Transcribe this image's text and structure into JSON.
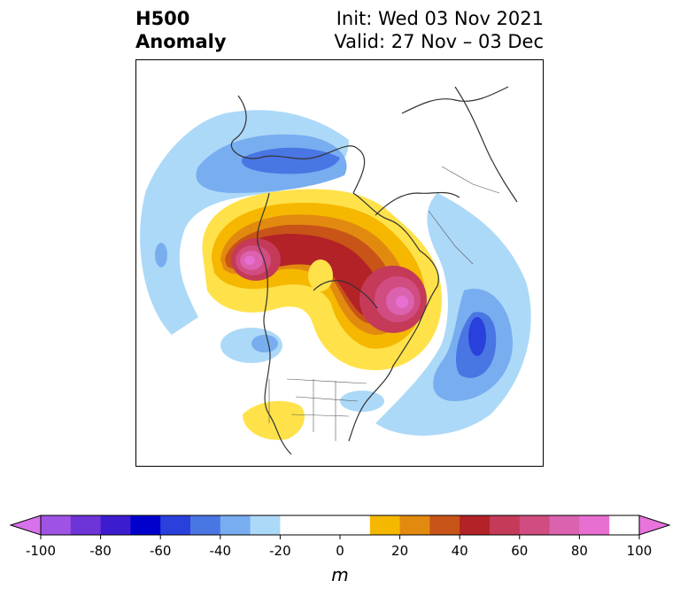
{
  "header": {
    "title_line1": "H500",
    "title_line2": "Anomaly",
    "init": "Init: Wed 03 Nov 2021",
    "valid": "Valid: 27 Nov – 03 Dec"
  },
  "colorbar": {
    "unit": "m",
    "ticks": [
      "-100",
      "-80",
      "-60",
      "-40",
      "-20",
      "0",
      "20",
      "40",
      "60",
      "80",
      "100"
    ],
    "levels": [
      -100,
      -90,
      -80,
      -70,
      -60,
      -50,
      -40,
      -30,
      -20,
      -10,
      10,
      20,
      30,
      40,
      50,
      60,
      70,
      80,
      90,
      100
    ],
    "colors": [
      "#9f53e4",
      "#6d34d8",
      "#3d1cd0",
      "#0000cd",
      "#2a40dc",
      "#4a76e4",
      "#78aef0",
      "#add9f8",
      "#ffffff",
      "#ffffff",
      "#ffe24a",
      "#f5b700",
      "#e28a10",
      "#c85418",
      "#b32226",
      "#c43a58",
      "#d14c80",
      "#db62ae",
      "#e86fd2"
    ],
    "under_color": "#d872ec",
    "over_color": "#e874dc"
  },
  "anomaly_colors": {
    "neg20": "#add9f8",
    "neg30": "#78aef0",
    "neg40": "#4a76e4",
    "neg50": "#2a40dc",
    "pos10": "#ffe24a",
    "pos20": "#f5b700",
    "pos30": "#e28a10",
    "pos40": "#c85418",
    "pos50": "#b32226",
    "pos60": "#c43a58",
    "pos70": "#d14c80",
    "pos80": "#db62ae",
    "pos90": "#e86fd2"
  }
}
